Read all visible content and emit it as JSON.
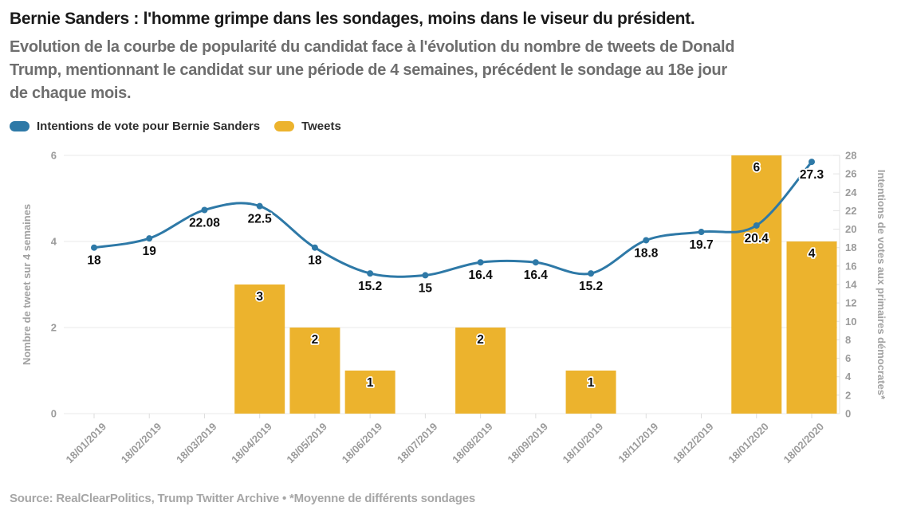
{
  "page": {
    "title": "Bernie Sanders : l'homme grimpe dans les sondages, moins dans le viseur du président.",
    "subtitle_lines": [
      "Evolution de la courbe de popularité du candidat face à l'évolution du nombre de tweets de Donald",
      "Trump, mentionnant le candidat sur une période de 4 semaines, précédent le sondage au 18e jour",
      "de chaque mois."
    ],
    "source": "Source: RealClearPolitics, Trump Twitter Archive • *Moyenne de différents sondages"
  },
  "legend": {
    "items": [
      {
        "label": "Intentions de vote pour Bernie Sanders",
        "color": "#2e79a7"
      },
      {
        "label": "Tweets",
        "color": "#ecb32d"
      }
    ]
  },
  "chart_data": {
    "type": "combo",
    "categories": [
      "18/01/2019",
      "18/02/2019",
      "18/03/2019",
      "18/04/2019",
      "18/05/2019",
      "18/06/2019",
      "18/07/2019",
      "18/08/2019",
      "18/09/2019",
      "18/10/2019",
      "18/11/2019",
      "18/12/2019",
      "18/01/2020",
      "18/02/2020"
    ],
    "series": [
      {
        "name": "Intentions de vote pour Bernie Sanders",
        "type": "line",
        "axis": "right",
        "color": "#2e79a7",
        "values": [
          18,
          19,
          22.08,
          22.5,
          18,
          15.2,
          15,
          16.4,
          16.4,
          15.2,
          18.8,
          19.7,
          20.4,
          27.3
        ]
      },
      {
        "name": "Tweets",
        "type": "bar",
        "axis": "left",
        "color": "#ecb32d",
        "values": [
          null,
          null,
          null,
          3,
          2,
          1,
          null,
          2,
          null,
          1,
          null,
          null,
          6,
          4
        ]
      }
    ],
    "left_axis": {
      "label": "Nombre de tweet sur 4 semaines",
      "ticks": [
        0,
        2,
        4,
        6
      ],
      "range": [
        0,
        6
      ],
      "grid": true
    },
    "right_axis": {
      "label": "Intentions de votes aux primaires démocrates*",
      "ticks": [
        0,
        2,
        4,
        6,
        8,
        10,
        12,
        14,
        16,
        18,
        20,
        22,
        24,
        26,
        28
      ],
      "range": [
        0,
        28
      ],
      "grid": false
    },
    "colors": {
      "grid": "#e8e8e8",
      "axis_text": "#9b9b9b",
      "data_label": "#0d0d0d"
    }
  }
}
